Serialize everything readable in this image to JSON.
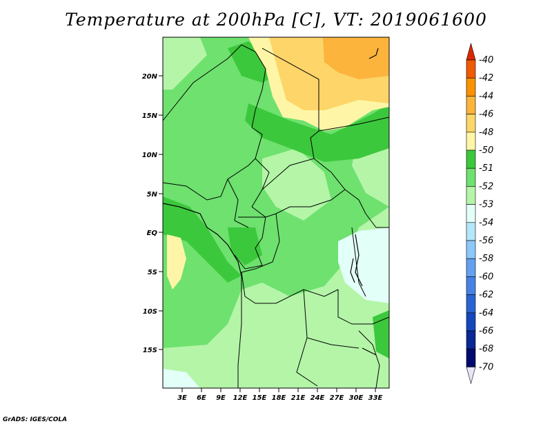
{
  "title": "Temperature at 200hPa [C], VT: 2019061600",
  "credit": "GrADS: IGES/COLA",
  "map": {
    "lat_ticks": [
      "20N",
      "15N",
      "10N",
      "5N",
      "EQ",
      "5S",
      "10S",
      "15S"
    ],
    "lon_ticks": [
      "3E",
      "6E",
      "9E",
      "12E",
      "15E",
      "18E",
      "21E",
      "24E",
      "27E",
      "30E",
      "33E"
    ]
  },
  "colorbar": {
    "levels": [
      "-40",
      "-42",
      "-44",
      "-46",
      "-48",
      "-50",
      "-51",
      "-52",
      "-53",
      "-54",
      "-56",
      "-58",
      "-60",
      "-62",
      "-64",
      "-66",
      "-68",
      "-70"
    ],
    "colors": [
      "#dc2800",
      "#f05a00",
      "#fa9100",
      "#fcb43c",
      "#fdd569",
      "#fef6a6",
      "#3cc83c",
      "#6ee16e",
      "#b4f5a8",
      "#e2fff8",
      "#b4e6fa",
      "#8cc8fa",
      "#64a0f0",
      "#4682e6",
      "#2864d2",
      "#1446be",
      "#0a2896",
      "#000a6e",
      "#e6e6f5"
    ]
  }
}
